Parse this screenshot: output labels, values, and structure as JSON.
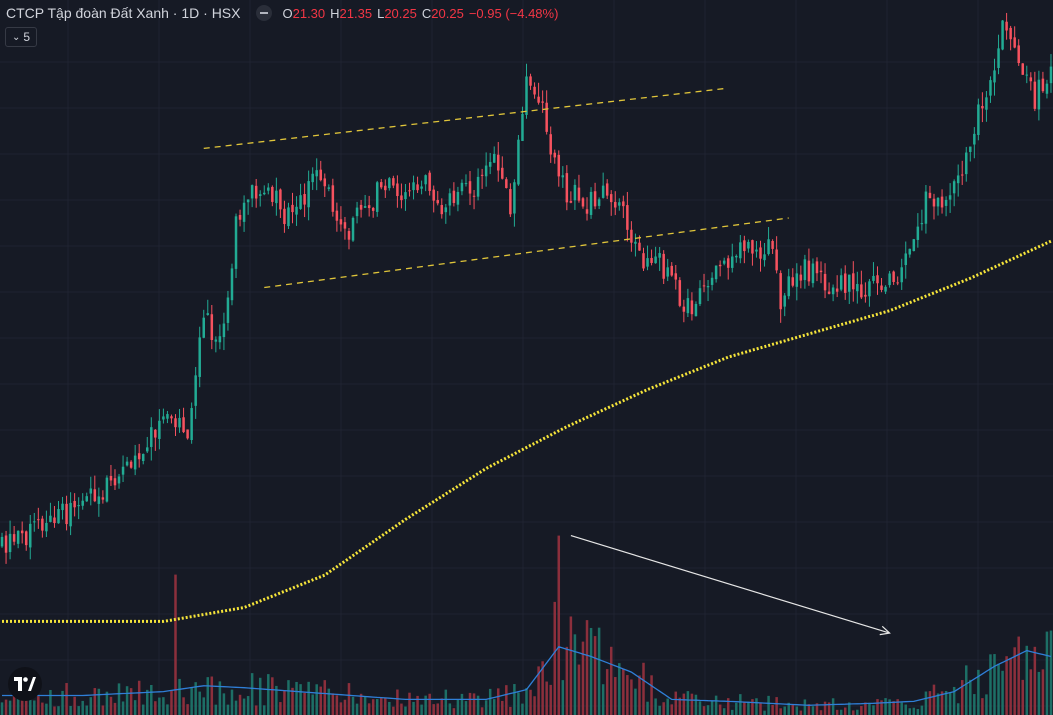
{
  "legend": {
    "title": "CTCP Tập đoàn Đất Xanh · 1D · HSX",
    "open_label": "O",
    "open_value": "21.30",
    "high_label": "H",
    "high_value": "21.35",
    "low_label": "L",
    "low_value": "20.25",
    "close_label": "C",
    "close_value": "20.25",
    "change_value": "−0.95 (−4.48%)"
  },
  "indicators_toggle": {
    "count": "5",
    "icon": "chevron-down-icon"
  },
  "logo": {
    "icon": "tradingview-logo-icon"
  },
  "colors": {
    "background": "#161a25",
    "grid": "#1f2331",
    "up": "#22ab94",
    "down": "#f7525f",
    "volume_up": "#1d6f66",
    "volume_down": "#8c2f3c",
    "ma": "#f5e43a",
    "volume_ma": "#2f7fd8",
    "channel": "#e0c53a",
    "arrow": "#e6e6e6"
  },
  "chart_data": {
    "type": "candlestick",
    "symbol": "CTCP Tập đoàn Đất Xanh",
    "interval": "1D",
    "exchange": "HSX",
    "price_range": [
      8.6,
      22.4
    ],
    "volume_range": [
      0,
      1
    ],
    "seed": 11,
    "price_path": [
      [
        0,
        10.6
      ],
      [
        8,
        11.0
      ],
      [
        18,
        11.4
      ],
      [
        28,
        12.0
      ],
      [
        36,
        12.9
      ],
      [
        42,
        13.3
      ],
      [
        46,
        13.0
      ],
      [
        50,
        15.5
      ],
      [
        54,
        15.0
      ],
      [
        58,
        17.5
      ],
      [
        62,
        18.2
      ],
      [
        66,
        18.4
      ],
      [
        70,
        17.8
      ],
      [
        78,
        18.5
      ],
      [
        86,
        17.5
      ],
      [
        95,
        18.4
      ],
      [
        100,
        18.0
      ],
      [
        104,
        18.6
      ],
      [
        108,
        17.8
      ],
      [
        113,
        18.2
      ],
      [
        118,
        18.5
      ],
      [
        122,
        19.3
      ],
      [
        126,
        18.0
      ],
      [
        130,
        20.5
      ],
      [
        134,
        20.0
      ],
      [
        138,
        18.4
      ],
      [
        142,
        18.2
      ],
      [
        146,
        18.0
      ],
      [
        150,
        18.2
      ],
      [
        154,
        17.8
      ],
      [
        158,
        16.8
      ],
      [
        162,
        17.0
      ],
      [
        166,
        16.2
      ],
      [
        170,
        15.8
      ],
      [
        174,
        16.2
      ],
      [
        178,
        16.5
      ],
      [
        183,
        17.2
      ],
      [
        186,
        16.8
      ],
      [
        190,
        17.2
      ],
      [
        193,
        16.0
      ],
      [
        197,
        16.6
      ],
      [
        201,
        16.5
      ],
      [
        205,
        16.2
      ],
      [
        209,
        16.3
      ],
      [
        213,
        16.0
      ],
      [
        218,
        16.4
      ],
      [
        222,
        16.2
      ],
      [
        226,
        17.5
      ],
      [
        230,
        18.2
      ],
      [
        235,
        18.0
      ],
      [
        240,
        19.5
      ],
      [
        244,
        20.5
      ],
      [
        248,
        21.8
      ],
      [
        252,
        21.2
      ],
      [
        256,
        20.3
      ],
      [
        260,
        20.8
      ]
    ],
    "ma_points": [
      [
        0,
        9.0
      ],
      [
        40,
        9.0
      ],
      [
        60,
        9.3
      ],
      [
        80,
        10.0
      ],
      [
        100,
        11.2
      ],
      [
        120,
        12.3
      ],
      [
        140,
        13.2
      ],
      [
        160,
        14.0
      ],
      [
        180,
        14.7
      ],
      [
        200,
        15.2
      ],
      [
        220,
        15.7
      ],
      [
        240,
        16.4
      ],
      [
        260,
        17.2
      ]
    ],
    "volume_ma_points": [
      [
        0,
        0.1
      ],
      [
        20,
        0.1
      ],
      [
        40,
        0.12
      ],
      [
        50,
        0.15
      ],
      [
        60,
        0.14
      ],
      [
        80,
        0.11
      ],
      [
        100,
        0.08
      ],
      [
        120,
        0.08
      ],
      [
        130,
        0.13
      ],
      [
        138,
        0.35
      ],
      [
        146,
        0.3
      ],
      [
        156,
        0.22
      ],
      [
        166,
        0.08
      ],
      [
        180,
        0.07
      ],
      [
        200,
        0.05
      ],
      [
        216,
        0.06
      ],
      [
        226,
        0.07
      ],
      [
        236,
        0.12
      ],
      [
        246,
        0.25
      ],
      [
        254,
        0.33
      ],
      [
        260,
        0.3
      ]
    ],
    "annotations": [
      {
        "type": "channel-line",
        "from": [
          50,
          19.2
        ],
        "to": [
          180,
          20.5
        ]
      },
      {
        "type": "channel-line",
        "from": [
          65,
          16.2
        ],
        "to": [
          195,
          17.7
        ]
      },
      {
        "type": "arrow",
        "from": [
          141,
          0.92
        ],
        "to": [
          220,
          0.42
        ],
        "pane": "volume"
      }
    ]
  }
}
